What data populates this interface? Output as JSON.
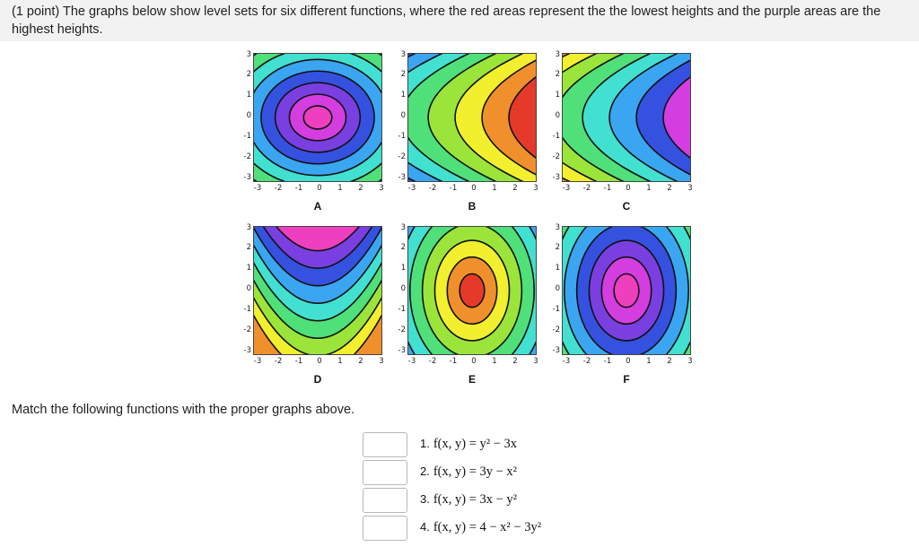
{
  "intro_text": "(1 point) The graphs below show level sets for six different functions, where the red areas represent the the lowest heights and the purple areas are the highest heights.",
  "match_instruction": "Match the following functions with the proper graphs above.",
  "axis_ticks": [
    "-3",
    "-2",
    "-1",
    "0",
    "1",
    "2",
    "3"
  ],
  "plots": [
    {
      "letter": "A",
      "pattern": "ellipse-purple-center"
    },
    {
      "letter": "B",
      "pattern": "left-opening-arcs-red-right"
    },
    {
      "letter": "C",
      "pattern": "left-opening-arcs-purple-right"
    },
    {
      "letter": "D",
      "pattern": "parabolas-purple-top"
    },
    {
      "letter": "E",
      "pattern": "vertical-ellipse-red-center"
    },
    {
      "letter": "F",
      "pattern": "vertical-ellipse-purple-center"
    }
  ],
  "functions": [
    {
      "number": "1.",
      "formula": "f(x, y) = y² − 3x",
      "answer": ""
    },
    {
      "number": "2.",
      "formula": "f(x, y) = 3y − x²",
      "answer": ""
    },
    {
      "number": "3.",
      "formula": "f(x, y) = 3x − y²",
      "answer": ""
    },
    {
      "number": "4.",
      "formula": "f(x, y) = 4 − x² − 3y²",
      "answer": ""
    }
  ],
  "palette": [
    "#e53a2a",
    "#f0902c",
    "#f2ef2e",
    "#9be53a",
    "#4fe07a",
    "#42e0d0",
    "#3aa6f2",
    "#3551e0",
    "#7a3fe0",
    "#d43ee0",
    "#ee3fbf"
  ]
}
